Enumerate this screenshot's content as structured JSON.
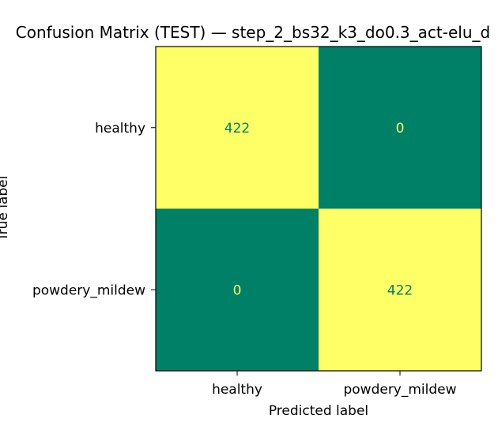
{
  "chart_data": {
    "type": "heatmap",
    "title": "Confusion Matrix (TEST) — step_2_bs32_k3_do0.3_act-elu_d",
    "xlabel": "Predicted label",
    "ylabel": "True label",
    "x_categories": [
      "healthy",
      "powdery_mildew"
    ],
    "y_categories": [
      "healthy",
      "powdery_mildew"
    ],
    "values": [
      [
        422,
        0
      ],
      [
        0,
        422
      ]
    ],
    "colormap": "summer",
    "color_range": [
      0,
      422
    ],
    "grid": false,
    "colorbar": false
  },
  "colors": {
    "high": "#ffff66",
    "low": "#008066",
    "text_on_high": "#008066",
    "text_on_low": "#ffff66"
  }
}
